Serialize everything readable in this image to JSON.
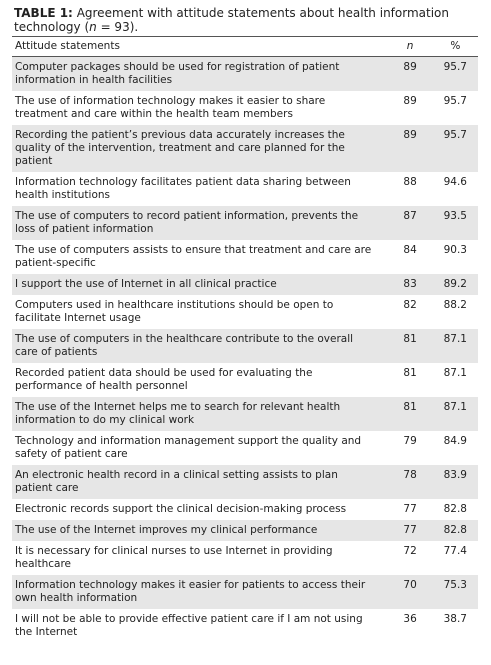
{
  "caption": {
    "label": "TABLE 1:",
    "text": "Agreement with attitude statements about health information technology (",
    "n": "n",
    "rest": " = 93)."
  },
  "table": {
    "header": [
      "Attitude statements",
      "n",
      "%"
    ],
    "rows": [
      [
        "Computer packages should be used for registration of patient information in health facilities",
        89,
        95.7
      ],
      [
        "The use of information technology makes it easier to share treatment and care within the health team members",
        89,
        95.7
      ],
      [
        "Recording the patient’s previous data accurately increases the quality of the intervention, treatment and care planned for the patient",
        89,
        95.7
      ],
      [
        "Information technology facilitates patient data sharing between health institutions",
        88,
        94.6
      ],
      [
        "The use of computers to record patient information, prevents the loss of patient information",
        87,
        93.5
      ],
      [
        "The use of computers assists to ensure that treatment and care are patient-specific",
        84,
        90.3
      ],
      [
        "I support the use of Internet in all clinical practice",
        83,
        89.2
      ],
      [
        "Computers used in healthcare institutions should be open to facilitate Internet usage",
        82,
        88.2
      ],
      [
        "The use of computers in the healthcare contribute to the overall care of patients",
        81,
        87.1
      ],
      [
        "Recorded patient data should be used for evaluating the performance of health personnel",
        81,
        87.1
      ],
      [
        "The use of the Internet helps me to search for relevant health information to do my clinical work",
        81,
        87.1
      ],
      [
        "Technology and information management support the quality and safety of patient care",
        79,
        84.9
      ],
      [
        "An electronic health record in a clinical setting assists to plan patient care",
        78,
        83.9
      ],
      [
        "Electronic records support the clinical decision-making process",
        77,
        82.8
      ],
      [
        "The use of the Internet improves my clinical performance",
        77,
        82.8
      ],
      [
        "It is necessary for clinical nurses to use Internet in providing healthcare",
        72,
        77.4
      ],
      [
        "Information technology makes it easier for patients to access their own health information",
        70,
        75.3
      ],
      [
        "I will not be able to provide effective patient care if I am not using the Internet",
        36,
        38.7
      ]
    ]
  }
}
